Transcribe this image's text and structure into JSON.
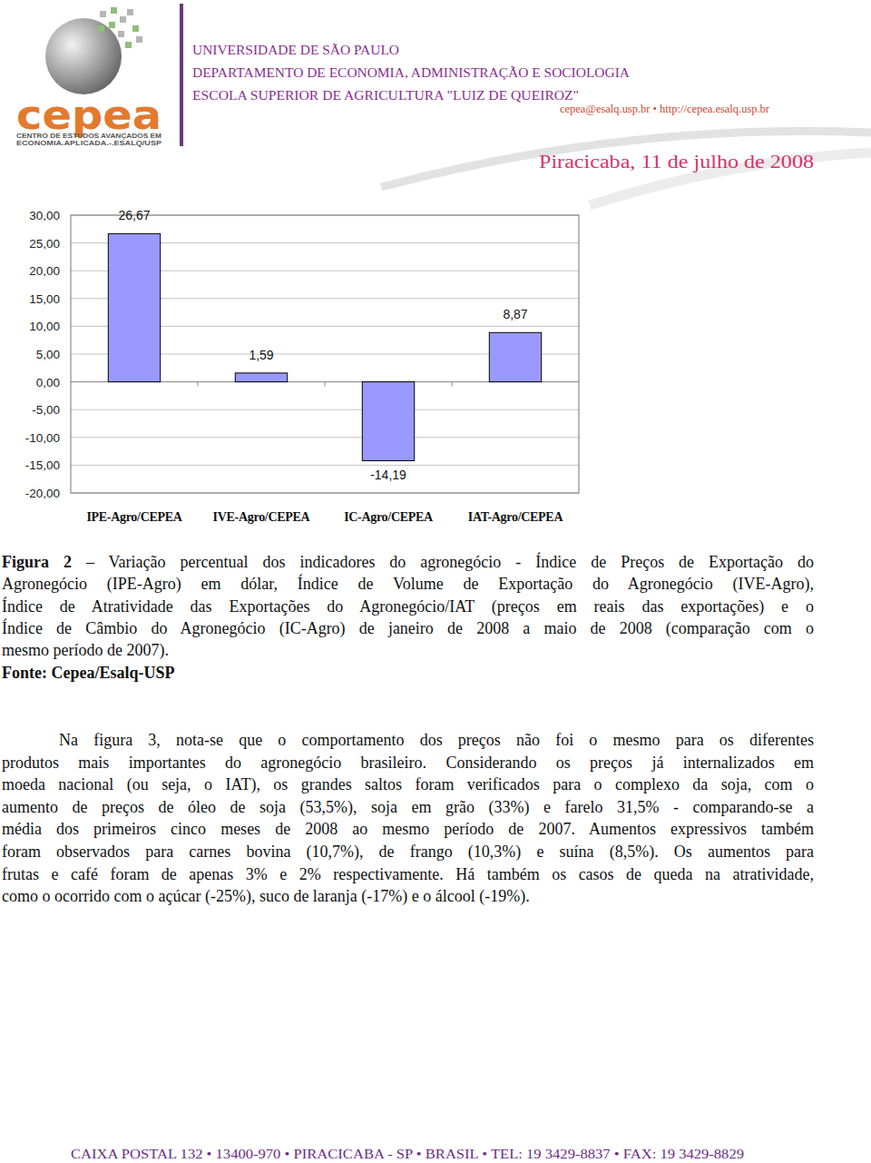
{
  "header": {
    "logo_text": "cepea",
    "logo_subtitle": [
      "CENTRO DE ESTUDOS AVANÇADOS EM",
      "ECONOMIA.APLICADA.-.ESALQ/USP"
    ],
    "institution": [
      "UNIVERSIDADE DE SÃO PAULO",
      "DEPARTAMENTO DE ECONOMIA, ADMINISTRAÇÃO E SOCIOLOGIA",
      "ESCOLA SUPERIOR DE AGRICULTURA \"LUIZ DE QUEIROZ\""
    ],
    "contact": "cepea@esalq.usp.br • http://cepea.esalq.usp.br",
    "date": "Piracicaba, 11 de julho de 2008"
  },
  "chart_data": {
    "type": "bar",
    "categories": [
      "IPE-Agro/CEPEA",
      "IVE-Agro/CEPEA",
      "IC-Agro/CEPEA",
      "IAT-Agro/CEPEA"
    ],
    "values": [
      26.67,
      1.59,
      -14.19,
      8.87
    ],
    "value_labels": [
      "26,67",
      "1,59",
      "-14,19",
      "8,87"
    ],
    "color": "#9999ff",
    "ylim": [
      -20,
      30
    ],
    "yticks": [
      {
        "value": -20,
        "label": "-20,00"
      },
      {
        "value": -15,
        "label": "-15,00"
      },
      {
        "value": -10,
        "label": "-10,00"
      },
      {
        "value": -5,
        "label": "-5,00"
      },
      {
        "value": 0,
        "label": "0,00"
      },
      {
        "value": 5,
        "label": "5,00"
      },
      {
        "value": 10,
        "label": "10,00"
      },
      {
        "value": 15,
        "label": "15,00"
      },
      {
        "value": 20,
        "label": "20,00"
      },
      {
        "value": 25,
        "label": "25,00"
      },
      {
        "value": 30,
        "label": "30,00"
      }
    ],
    "grid": true,
    "data_labels": true
  },
  "caption": {
    "label": "Figura 2",
    "lines": [
      "– Variação percentual dos indicadores do agronegócio - Índice de Preços de Exportação do",
      "Agronegócio (IPE-Agro) em dólar, Índice de Volume de Exportação do Agronegócio (IVE-Agro),",
      "Índice de Atratividade das Exportações do Agronegócio/IAT  (preços em reais das exportações) e o",
      "Índice de Câmbio do Agronegócio (IC-Agro) de janeiro de 2008 a maio de 2008 (comparação com o",
      "mesmo período de 2007)."
    ]
  },
  "source": "Fonte: Cepea/Esalq-USP",
  "paragraph": [
    "Na figura 3, nota-se que o comportamento dos preços não foi o mesmo para os diferentes",
    "produtos mais importantes do agronegócio brasileiro. Considerando os preços já internalizados em",
    "moeda nacional (ou seja, o IAT), os grandes saltos foram verificados para o complexo da soja, com o",
    "aumento de preços de óleo de soja (53,5%), soja em grão (33%) e farelo 31,5% - comparando-se a",
    "média dos primeiros cinco meses de 2008 ao mesmo período de 2007. Aumentos expressivos também",
    "foram observados para carnes bovina (10,7%), de frango (10,3%) e suína (8,5%). Os aumentos para",
    "frutas e café foram de apenas 3% e 2% respectivamente. Há também os casos de queda na atratividade,",
    "como o ocorrido com o açúcar (-25%), suco de laranja (-17%) e o álcool (-19%)."
  ],
  "footer": "CAIXA POSTAL 132 • 13400-970 • PIRACICABA - SP • BRASIL • TEL: 19 3429-8837 • FAX: 19 3429-8829"
}
